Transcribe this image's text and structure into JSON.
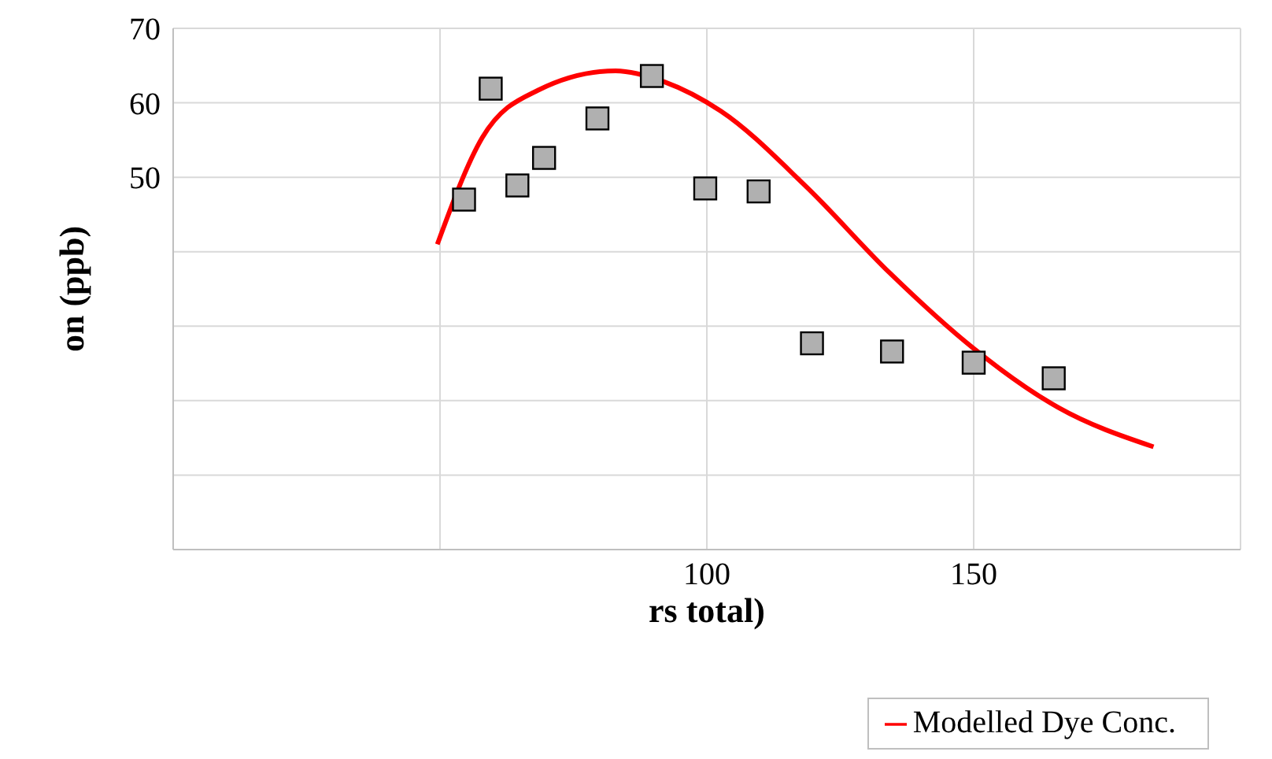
{
  "chart_data": {
    "type": "scatter",
    "xlabel": "rs total)",
    "ylabel": "on (ppb)",
    "xlim": [
      0,
      200
    ],
    "xticks": [
      {
        "value": 0,
        "label": null
      },
      {
        "value": 50,
        "label": null
      },
      100,
      150,
      {
        "value": 200,
        "label": null
      }
    ],
    "ylim": [
      0,
      70
    ],
    "yticks": [
      {
        "value": 0,
        "label": null
      },
      {
        "value": 10,
        "label": null
      },
      {
        "value": 20,
        "label": null
      },
      {
        "value": 30,
        "label": null
      },
      {
        "value": 40,
        "label": null
      },
      50,
      60,
      70
    ],
    "grid": true,
    "legend": "bottom right",
    "marker": "square",
    "series": [
      {
        "color": "#b0b0b0",
        "x": [
          54.5,
          59.5,
          64.5,
          69.5,
          79.5,
          89.7,
          99.7,
          109.7,
          119.7,
          134.7,
          150,
          165
        ],
        "values": [
          47,
          61.9,
          48.9,
          52.6,
          57.9,
          63.6,
          48.5,
          48.1,
          27.7,
          26.6,
          25.1,
          23
        ]
      },
      {
        "type": "line",
        "name": "Modelled Dye Conc.",
        "color": "#ff0000",
        "marker": "none",
        "x": [
          49.5,
          57.9,
          68.4,
          82.9,
          92.1,
          102.6,
          118.4,
          134.2,
          150,
          165.8,
          183.7
        ],
        "values": [
          41,
          55.3,
          61.7,
          64.3,
          62.8,
          58.9,
          48.9,
          37.2,
          27,
          19.1,
          13.8
        ]
      }
    ]
  }
}
